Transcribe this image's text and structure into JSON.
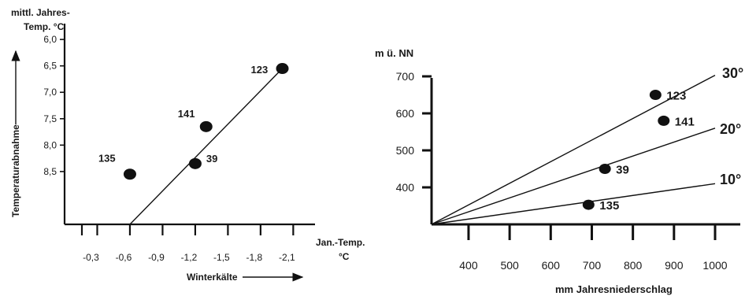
{
  "chart_data": [
    {
      "type": "scatter",
      "ylabel_top": "mittl. Jahres-",
      "ylabel_bottom": "Temp. °C",
      "y_side_label": "Temperaturabnahme",
      "xlabel_right_top": "Jan.-Temp.",
      "xlabel_right_bottom": "°C",
      "xlabel_bottom": "Winterkälte",
      "x_ticks": [
        "-0,3",
        "-0,6",
        "-0,9",
        "-1,2",
        "-1,5",
        "-1,8",
        "-2,1"
      ],
      "y_ticks": [
        "6,0",
        "6,5",
        "7,0",
        "7,5",
        "8,0",
        "8,5"
      ],
      "xlim": [
        0,
        -2.3
      ],
      "ylim": [
        9.5,
        5.7
      ],
      "points": [
        {
          "label": "135",
          "x": -0.6,
          "y": 8.55
        },
        {
          "label": "141",
          "x": -1.3,
          "y": 7.65
        },
        {
          "label": "39",
          "x": -1.2,
          "y": 8.35
        },
        {
          "label": "123",
          "x": -2.0,
          "y": 6.55
        }
      ],
      "trend_line": {
        "x": [
          -0.6,
          -2.0
        ],
        "y": [
          9.5,
          6.55
        ]
      }
    },
    {
      "type": "scatter",
      "ylabel": "m ü. NN",
      "xlabel": "mm Jahresniederschlag",
      "x_ticks": [
        "400",
        "500",
        "600",
        "700",
        "800",
        "900",
        "1000"
      ],
      "y_ticks": [
        "400",
        "500",
        "600",
        "700"
      ],
      "xlim": [
        310,
        1000
      ],
      "ylim": [
        300,
        700
      ],
      "points": [
        {
          "label": "123",
          "x": 855,
          "y": 650
        },
        {
          "label": "141",
          "x": 875,
          "y": 580
        },
        {
          "label": "39",
          "x": 732,
          "y": 450
        },
        {
          "label": "135",
          "x": 692,
          "y": 353
        }
      ],
      "lines": [
        {
          "label": "30°",
          "x": [
            310,
            1000
          ],
          "y": [
            300,
            703
          ]
        },
        {
          "label": "20°",
          "x": [
            310,
            1000
          ],
          "y": [
            300,
            560
          ]
        },
        {
          "label": "10°",
          "x": [
            310,
            1000
          ],
          "y": [
            300,
            410
          ]
        }
      ]
    }
  ]
}
